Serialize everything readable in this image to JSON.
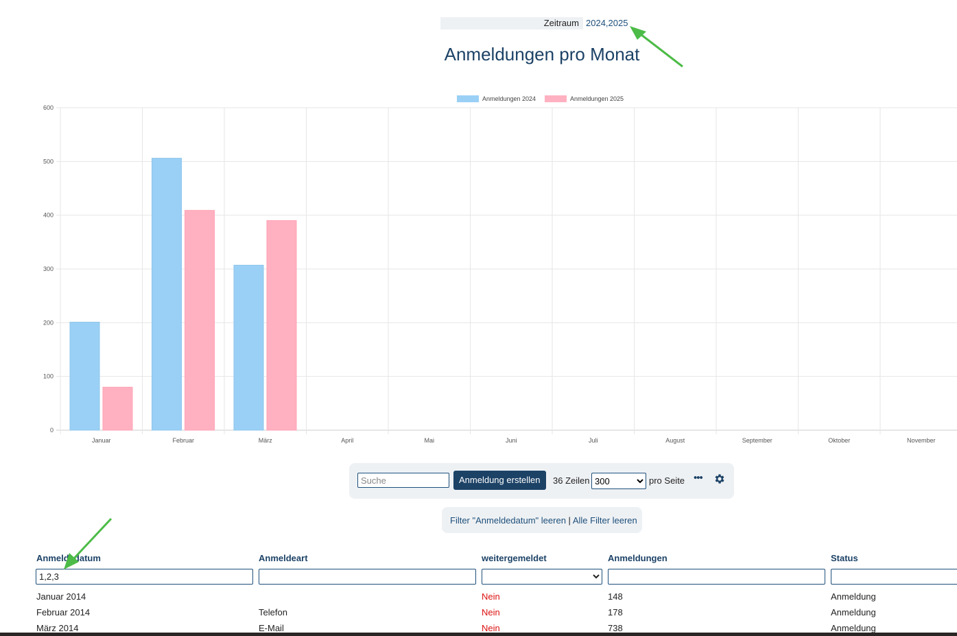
{
  "header": {
    "period_label": "Zeitraum",
    "period_value": "2024,2025",
    "title": "Anmeldungen pro Monat"
  },
  "colors": {
    "series_2024": "#9ad0f5",
    "series_2025": "#ffb1c1",
    "brand": "#1c4266",
    "annotation_arrow": "#4cbb47",
    "no_value": "#dd1111"
  },
  "chart_data": {
    "type": "bar",
    "categories": [
      "Januar",
      "Februar",
      "März",
      "April",
      "Mai",
      "Juni",
      "Juli",
      "August",
      "September",
      "Oktober",
      "November"
    ],
    "series": [
      {
        "name": "Anmeldungen 2024",
        "values": [
          201,
          506,
          307,
          null,
          null,
          null,
          null,
          null,
          null,
          null,
          null
        ]
      },
      {
        "name": "Anmeldungen 2025",
        "values": [
          80,
          409,
          390,
          null,
          null,
          null,
          null,
          null,
          null,
          null,
          null
        ]
      }
    ],
    "ylim": [
      0,
      600
    ],
    "yticks": [
      0,
      100,
      200,
      300,
      400,
      500,
      600
    ],
    "grid": true,
    "legend_position": "top-center"
  },
  "toolbar": {
    "search_placeholder": "Suche",
    "create_button": "Anmeldung erstellen",
    "rows_count": "36 Zeilen",
    "per_page_selected": "300",
    "per_page_label": "pro Seite",
    "more_icon": "ellipsis-icon",
    "settings_icon": "gear-icon"
  },
  "filters": {
    "clear_column": "Filter \"Anmeldedatum\" leeren",
    "separator": "|",
    "clear_all": "Alle Filter leeren"
  },
  "table": {
    "columns": [
      "Anmeldedatum",
      "Anmeldeart",
      "weitergemeldet",
      "Anmeldungen",
      "Status"
    ],
    "filter_values": {
      "anmeldedatum": "1,2,3"
    },
    "rows": [
      {
        "datum": "Januar 2014",
        "art": "",
        "weitergemeldet": "Nein",
        "anmeldungen": "148",
        "status": "Anmeldung"
      },
      {
        "datum": "Februar 2014",
        "art": "Telefon",
        "weitergemeldet": "Nein",
        "anmeldungen": "178",
        "status": "Anmeldung"
      },
      {
        "datum": "März 2014",
        "art": "E-Mail",
        "weitergemeldet": "Nein",
        "anmeldungen": "738",
        "status": "Anmeldung"
      }
    ]
  }
}
